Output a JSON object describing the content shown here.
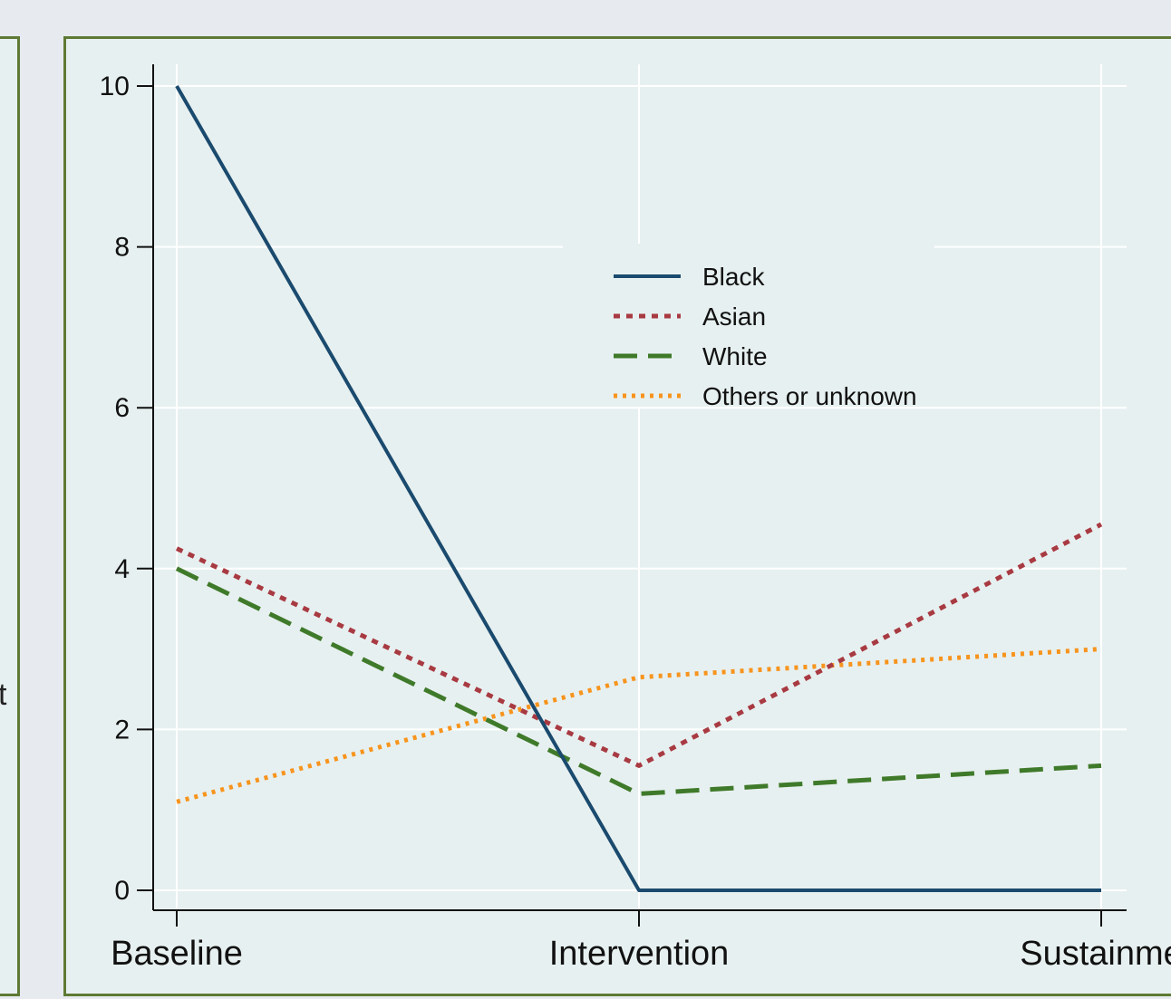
{
  "left_panel": {
    "clipped_text": "t"
  },
  "chart_data": {
    "type": "line",
    "categories": [
      "Baseline",
      "Intervention",
      "Sustainme"
    ],
    "ylim": [
      0,
      10
    ],
    "yticks": [
      0,
      2,
      4,
      6,
      8,
      10
    ],
    "ytick_labels": [
      "0",
      "2",
      "4",
      "6",
      "8",
      "10"
    ],
    "grid": true,
    "legend_position": "upper-center",
    "series": [
      {
        "name": "Black",
        "values": [
          10,
          0,
          0
        ],
        "color": "#1a4a6e",
        "dash": "solid"
      },
      {
        "name": "Asian",
        "values": [
          4.25,
          1.55,
          4.55
        ],
        "color": "#a83a42",
        "dash": "dot"
      },
      {
        "name": "White",
        "values": [
          4.0,
          1.2,
          1.55
        ],
        "color": "#3f7a2a",
        "dash": "long-dash"
      },
      {
        "name": "Others or unknown",
        "values": [
          1.1,
          2.65,
          3.0
        ],
        "color": "#f7941d",
        "dash": "dense-dot"
      }
    ],
    "colors": {
      "plot_background": "#e7f0f0",
      "grid": "#ffffff",
      "frame": "#5e7a34"
    }
  }
}
